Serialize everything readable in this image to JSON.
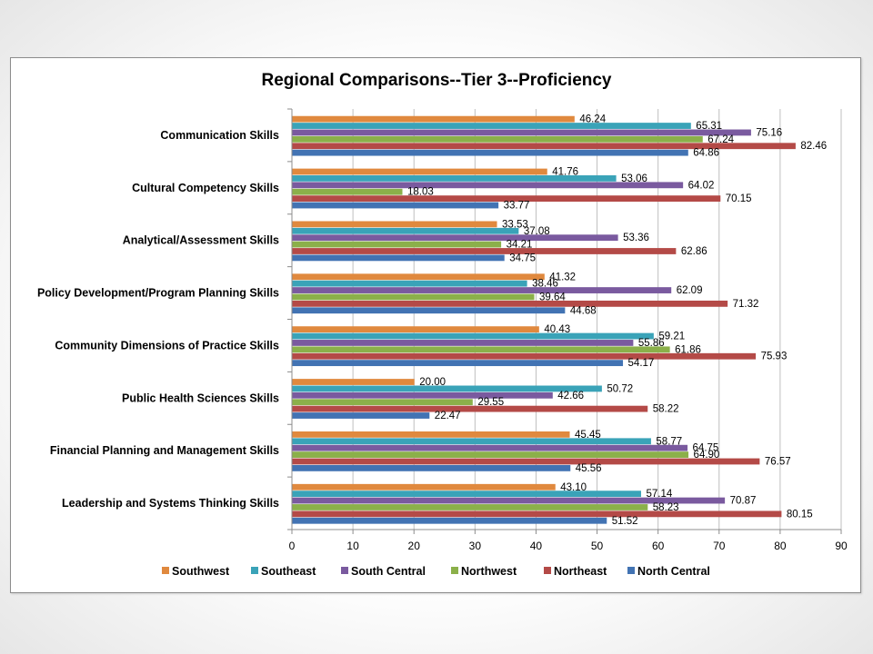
{
  "chart_data": {
    "type": "bar",
    "orientation": "horizontal",
    "title": "Regional Comparisons--Tier 3--Proficiency",
    "categories": [
      "Communication Skills",
      "Cultural Competency Skills",
      "Analytical/Assessment Skills",
      "Policy Development/Program Planning Skills",
      "Community Dimensions of Practice Skills",
      "Public Health Sciences Skills",
      "Financial Planning and Management Skills",
      "Leadership and Systems Thinking Skills"
    ],
    "series": [
      {
        "name": "Southwest",
        "color": "#e0893e",
        "values": [
          46.24,
          41.76,
          33.53,
          41.32,
          40.43,
          20.0,
          45.45,
          43.1
        ],
        "labels": [
          "46.24",
          "41.76",
          "33.53",
          "41.32",
          "40.43",
          "20.00",
          "45.45",
          "43.10"
        ]
      },
      {
        "name": "Southeast",
        "color": "#3aa3b8",
        "values": [
          65.31,
          53.06,
          37.08,
          38.46,
          59.21,
          50.72,
          58.77,
          57.14
        ],
        "labels": [
          "65.31",
          "53.06",
          "37.08",
          "38.46",
          "59.21",
          "50.72",
          "58.77",
          "57.14"
        ]
      },
      {
        "name": "South Central",
        "color": "#7a5a9f",
        "values": [
          75.16,
          64.02,
          53.36,
          62.09,
          55.86,
          42.66,
          64.75,
          70.87
        ],
        "labels": [
          "75.16",
          "64.02",
          "53.36",
          "62.09",
          "55.86",
          "42.66",
          "64.75",
          "70.87"
        ]
      },
      {
        "name": "Northwest",
        "color": "#8bb04a",
        "values": [
          67.24,
          18.03,
          34.21,
          39.64,
          61.86,
          29.55,
          64.9,
          58.23
        ],
        "labels": [
          "67.24",
          "18.03",
          "34.21",
          "39.64",
          "61.86",
          "29.55",
          "64.90",
          "58.23"
        ]
      },
      {
        "name": "Northeast",
        "color": "#b44a47",
        "values": [
          82.46,
          70.15,
          62.86,
          71.32,
          75.93,
          58.22,
          76.57,
          80.15
        ],
        "labels": [
          "82.46",
          "70.15",
          "62.86",
          "71.32",
          "75.93",
          "58.22",
          "76.57",
          "80.15"
        ]
      },
      {
        "name": "North Central",
        "color": "#4273b3",
        "values": [
          64.86,
          33.77,
          34.75,
          44.68,
          54.17,
          22.47,
          45.56,
          51.52
        ],
        "labels": [
          "64.86",
          "33.77",
          "34.75",
          "44.68",
          "54.17",
          "22.47",
          "45.56",
          "51.52"
        ]
      }
    ],
    "xlim": [
      0,
      90
    ],
    "xticks": [
      "0",
      "10",
      "20",
      "30",
      "40",
      "50",
      "60",
      "70",
      "80",
      "90"
    ],
    "grid": true,
    "legend_position": "bottom"
  }
}
